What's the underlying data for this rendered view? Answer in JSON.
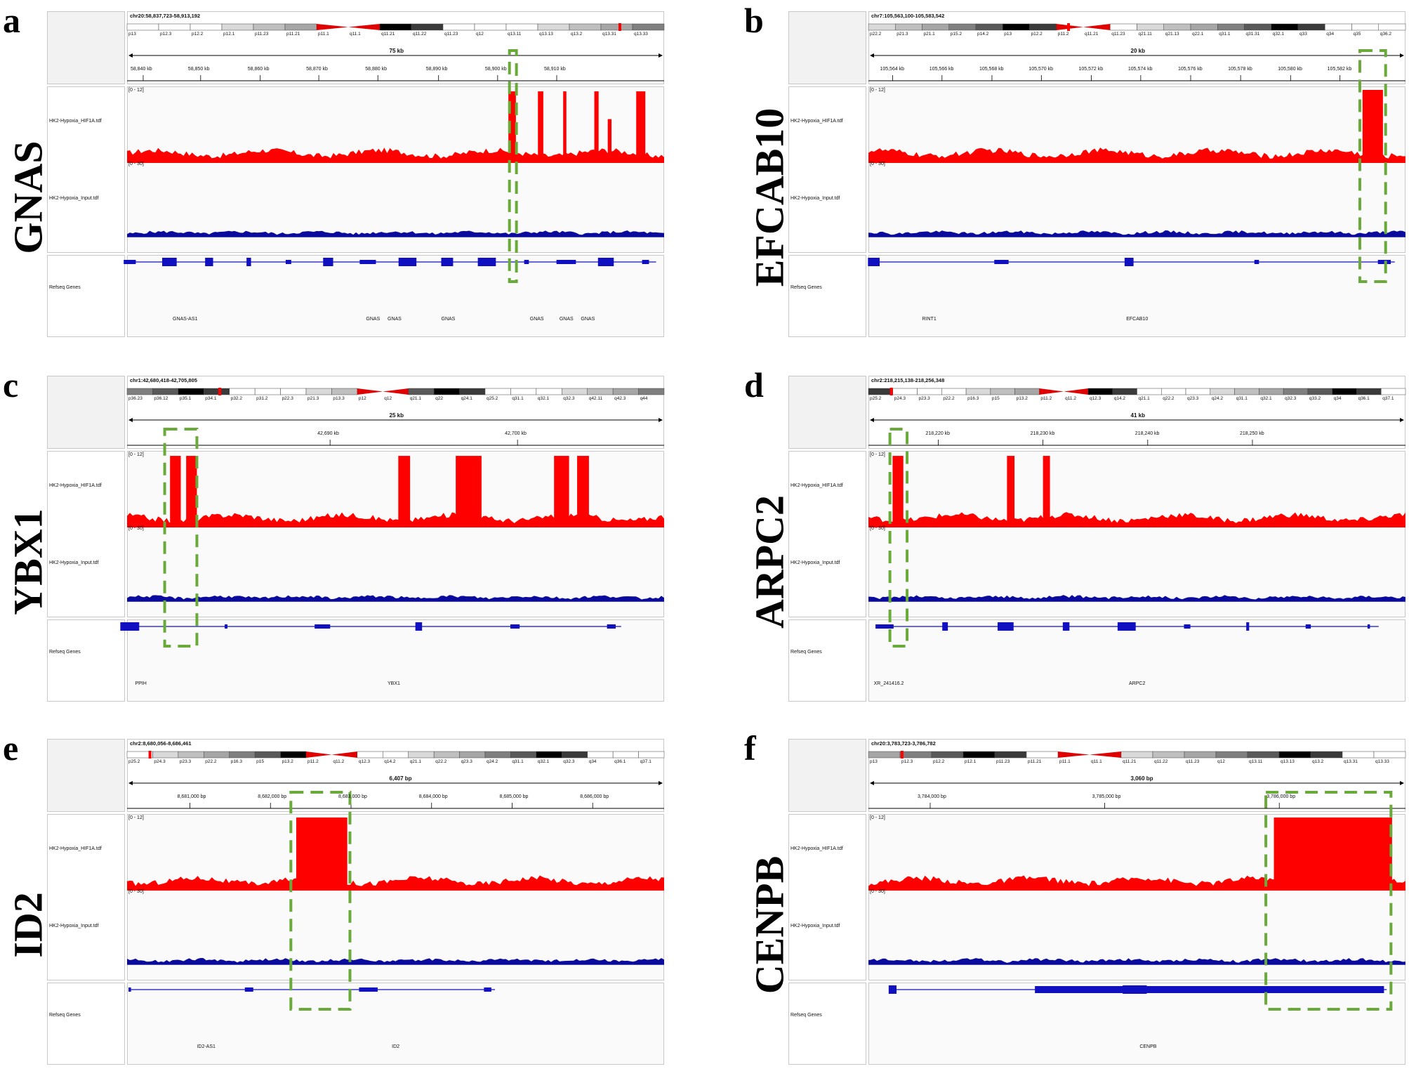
{
  "panels": [
    {
      "letter": "a",
      "gene": "GNAS",
      "locus": "chr20:58,837,723-58,913,192",
      "span": "75 kb",
      "ticks": [
        "58,840 kb",
        "58,850 kb",
        "58,860 kb",
        "58,870 kb",
        "58,880 kb",
        "58,890 kb",
        "58,900 kb",
        "58,910 kb"
      ],
      "bands": [
        "p13",
        "p12.3",
        "p12.2",
        "p12.1",
        "p11.23",
        "p11.21",
        "p11.1",
        "q11.1",
        "q11.21",
        "q11.22",
        "q11.23",
        "q12",
        "q13.11",
        "q13.13",
        "q13.2",
        "q13.31",
        "q13.33"
      ],
      "track1": "HK2-Hypoxia_HIF1A.tdf",
      "track2": "HK2-Hypoxia_Input.tdf",
      "range1": "[0 - 12]",
      "range2": "[0 - 30]",
      "refseq": "Refseq Genes",
      "genes": [
        "GNAS-AS1",
        "GNAS",
        "GNAS",
        "GNAS",
        "GNAS",
        "GNAS",
        "GNAS"
      ]
    },
    {
      "letter": "b",
      "gene": "EFCAB10",
      "locus": "chr7:105,563,100-105,583,542",
      "span": "20 kb",
      "ticks": [
        "105,564 kb",
        "105,566 kb",
        "105,568 kb",
        "105,570 kb",
        "105,572 kb",
        "105,574 kb",
        "105,576 kb",
        "105,578 kb",
        "105,580 kb",
        "105,582 kb"
      ],
      "bands": [
        "p22.2",
        "p21.3",
        "p21.1",
        "p15.2",
        "p14.2",
        "p13",
        "p12.2",
        "p11.2",
        "q11.21",
        "q11.23",
        "q21.11",
        "q21.13",
        "q22.1",
        "q31.1",
        "q31.31",
        "q32.1",
        "q33",
        "q34",
        "q35",
        "q36.2"
      ],
      "track1": "HK2-Hypoxia_HIF1A.tdf",
      "track2": "HK2-Hypoxia_Input.tdf",
      "range1": "[0 - 12]",
      "range2": "[0 - 30]",
      "refseq": "Refseq Genes",
      "genes": [
        "RINT1",
        "EFCAB10"
      ]
    },
    {
      "letter": "c",
      "gene": "YBX1",
      "locus": "chr1:42,680,418-42,705,805",
      "span": "25 kb",
      "ticks": [
        "42,690 kb",
        "42,700 kb"
      ],
      "bands": [
        "p36.23",
        "p36.12",
        "p35.1",
        "p34.1",
        "p32.2",
        "p31.2",
        "p22.3",
        "p21.3",
        "p13.3",
        "p12",
        "q12",
        "q21.1",
        "q22",
        "q24.1",
        "q25.2",
        "q31.1",
        "q32.1",
        "q32.3",
        "q42.11",
        "q42.3",
        "q44"
      ],
      "track1": "HK2-Hypoxia_HIF1A.tdf",
      "track2": "HK2-Hypoxia_Input.tdf",
      "range1": "[0 - 12]",
      "range2": "[0 - 30]",
      "refseq": "Refseq Genes",
      "genes": [
        "PPIH",
        "YBX1"
      ]
    },
    {
      "letter": "d",
      "gene": "ARPC2",
      "locus": "chr2:218,215,138-218,256,348",
      "span": "41 kb",
      "ticks": [
        "218,220 kb",
        "218,230 kb",
        "218,240 kb",
        "218,250 kb"
      ],
      "bands": [
        "p25.2",
        "p24.3",
        "p23.3",
        "p22.2",
        "p16.3",
        "p15",
        "p13.2",
        "p11.2",
        "q11.2",
        "q12.3",
        "q14.2",
        "q21.1",
        "q22.2",
        "q23.3",
        "q24.2",
        "q31.1",
        "q32.1",
        "q32.3",
        "q33.2",
        "q34",
        "q36.1",
        "q37.1"
      ],
      "track1": "HK2-Hypoxia_HIF1A.tdf",
      "track2": "HK2-Hypoxia_Input.tdf",
      "range1": "[0 - 12]",
      "range2": "[0 - 30]",
      "refseq": "Refseq Genes",
      "genes": [
        "XR_241416.2",
        "ARPC2"
      ]
    },
    {
      "letter": "e",
      "gene": "ID2",
      "locus": "chr2:8,680,056-8,686,461",
      "span": "6,407 bp",
      "ticks": [
        "8,681,000 bp",
        "8,682,000 bp",
        "8,683,000 bp",
        "8,684,000 bp",
        "8,685,000 bp",
        "8,686,000 bp"
      ],
      "bands": [
        "p25.2",
        "p24.3",
        "p23.3",
        "p22.2",
        "p16.3",
        "p15",
        "p13.2",
        "p11.2",
        "q11.2",
        "q12.3",
        "q14.2",
        "q21.1",
        "q22.2",
        "q23.3",
        "q24.2",
        "q31.1",
        "q32.1",
        "q32.3",
        "q34",
        "q36.1",
        "q37.1"
      ],
      "track1": "HK2-Hypoxia_HIF1A.tdf",
      "track2": "HK2-Hypoxia_Input.tdf",
      "range1": "[0 - 12]",
      "range2": "[0 - 30]",
      "refseq": "Refseq Genes",
      "genes": [
        "ID2-AS1",
        "ID2"
      ]
    },
    {
      "letter": "f",
      "gene": "CENPB",
      "locus": "chr20:3,783,723-3,786,782",
      "span": "3,060 bp",
      "ticks": [
        "3,784,000 bp",
        "3,785,000 bp",
        "3,786,000 bp"
      ],
      "bands": [
        "p13",
        "p12.3",
        "p12.2",
        "p12.1",
        "p11.23",
        "p11.21",
        "p11.1",
        "q11.1",
        "q11.21",
        "q11.22",
        "q11.23",
        "q12",
        "q13.11",
        "q13.13",
        "q13.2",
        "q13.31",
        "q13.33"
      ],
      "track1": "HK2-Hypoxia_HIF1A.tdf",
      "track2": "HK2-Hypoxia_Input.tdf",
      "range1": "[0 - 12]",
      "range2": "[0 - 30]",
      "refseq": "Refseq Genes",
      "genes": [
        "CENPB"
      ]
    }
  ]
}
